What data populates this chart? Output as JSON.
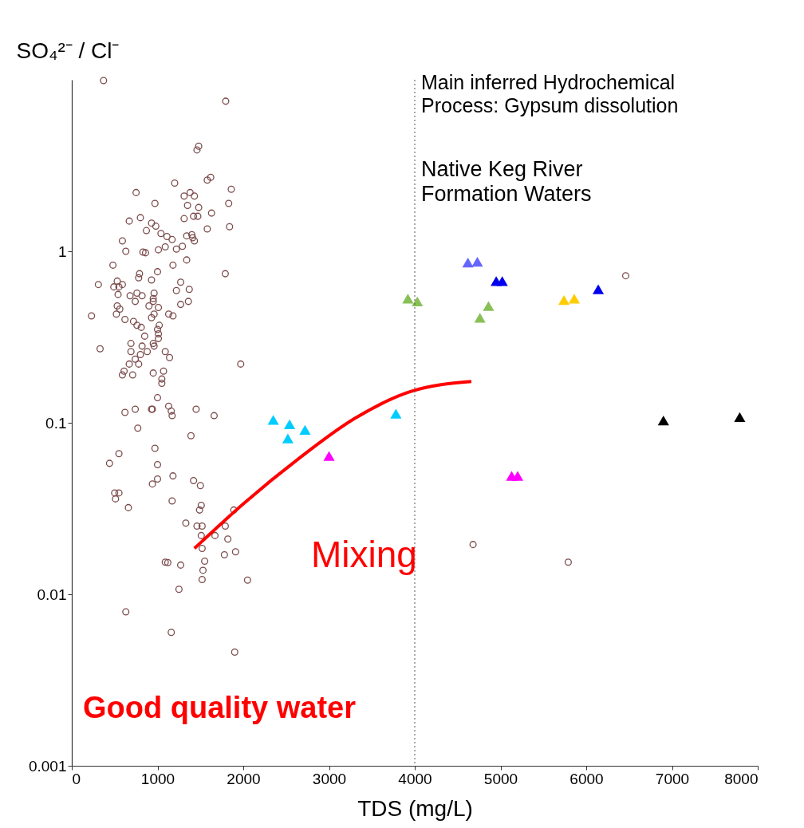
{
  "chart_data": {
    "type": "scatter",
    "xlabel": "TDS (mg/L)",
    "ylabel": "SO₄²⁻ / Cl⁻",
    "xlim": [
      0,
      8000
    ],
    "xticks": [
      0,
      1000,
      2000,
      3000,
      4000,
      5000,
      6000,
      7000,
      8000
    ],
    "ylim": [
      0.001,
      10
    ],
    "yticks": [
      1,
      0.1,
      0.01,
      0.001
    ],
    "log": "y",
    "grid": false,
    "annotations": [
      "Main inferred Hydrochemical\nProcess: Gypsum dissolution",
      "Native Keg River\nFormation Waters",
      "Mixing",
      "Good quality water"
    ],
    "ref_lines": [
      {
        "axis": "x",
        "value": 4000,
        "color": "#555555",
        "line_style": "dotted"
      }
    ],
    "series": [
      {
        "color": "#7b4a4a",
        "marker": "circle",
        "x": [
          370,
          1795,
          1460,
          1480,
          1200,
          1580,
          1620,
          1860,
          750,
          1380,
          1430,
          1310,
          1830,
          970,
          1350,
          1480,
          1630,
          1310,
          1420,
          1470,
          1840,
          670,
          800,
          930,
          980,
          870,
          590,
          1040,
          1110,
          1170,
          1340,
          1400,
          1410,
          1580,
          1290,
          1090,
          1220,
          860,
          630,
          1010,
          1430,
          1340,
          830,
          480,
          1180,
          1790,
          310,
          530,
          590,
          490,
          550,
          540,
          790,
          780,
          930,
          1000,
          1270,
          1220,
          1370,
          1360,
          1270,
          680,
          760,
          740,
          820,
          960,
          950,
          950,
          900,
          1010,
          530,
          560,
          520,
          230,
          620,
          930,
          960,
          1130,
          1180,
          720,
          760,
          810,
          1020,
          1000,
          1010,
          1010,
          850,
          690,
          330,
          820,
          950,
          960,
          690,
          800,
          880,
          1090,
          1140,
          740,
          780,
          670,
          610,
          590,
          710,
          950,
          1070,
          1050,
          1050,
          1970,
          1000,
          620,
          740,
          940,
          930,
          1130,
          1160,
          1170,
          1450,
          1660,
          770,
          1390,
          550,
          440,
          970,
          1000,
          1180,
          1420,
          1500,
          940,
          1000,
          500,
          550,
          510,
          660,
          1170,
          1510,
          1490,
          1890,
          1330,
          1460,
          1520,
          1790,
          1670,
          1510,
          1820,
          1520,
          1780,
          1910,
          1550,
          1090,
          1120,
          1270,
          1530,
          1520,
          2050,
          1250,
          630,
          1160,
          1900,
          6460,
          4680,
          5790
        ],
        "values": [
          9.9,
          7.5,
          3.9,
          4.1,
          2.5,
          2.6,
          2.7,
          2.3,
          2.2,
          2.2,
          2.1,
          2.1,
          1.9,
          1.9,
          1.85,
          1.8,
          1.67,
          1.55,
          1.6,
          1.6,
          1.39,
          1.5,
          1.57,
          1.46,
          1.4,
          1.32,
          1.15,
          1.27,
          1.22,
          1.17,
          1.23,
          1.25,
          1.2,
          1.35,
          1.07,
          1.06,
          1.03,
          0.98,
          1.0,
          1.02,
          1.15,
          0.89,
          0.99,
          0.83,
          0.83,
          0.74,
          0.64,
          0.67,
          0.64,
          0.62,
          0.62,
          0.56,
          0.74,
          0.7,
          0.68,
          0.76,
          0.66,
          0.59,
          0.6,
          0.51,
          0.49,
          0.55,
          0.57,
          0.51,
          0.55,
          0.57,
          0.53,
          0.51,
          0.48,
          0.47,
          0.48,
          0.46,
          0.43,
          0.42,
          0.4,
          0.41,
          0.43,
          0.43,
          0.42,
          0.39,
          0.37,
          0.36,
          0.37,
          0.35,
          0.33,
          0.31,
          0.32,
          0.29,
          0.27,
          0.28,
          0.29,
          0.28,
          0.26,
          0.25,
          0.26,
          0.26,
          0.24,
          0.235,
          0.22,
          0.22,
          0.2,
          0.19,
          0.19,
          0.195,
          0.2,
          0.18,
          0.17,
          0.22,
          0.14,
          0.115,
          0.12,
          0.12,
          0.12,
          0.125,
          0.117,
          0.11,
          0.12,
          0.11,
          0.093,
          0.084,
          0.066,
          0.058,
          0.071,
          0.057,
          0.049,
          0.046,
          0.043,
          0.044,
          0.047,
          0.039,
          0.039,
          0.036,
          0.032,
          0.035,
          0.033,
          0.031,
          0.031,
          0.026,
          0.025,
          0.025,
          0.025,
          0.022,
          0.022,
          0.021,
          0.0185,
          0.017,
          0.0177,
          0.0156,
          0.0154,
          0.0153,
          0.0148,
          0.0138,
          0.0122,
          0.0121,
          0.0107,
          0.0079,
          0.006,
          0.0046,
          0.72,
          0.0195,
          0.0154
        ]
      },
      {
        "color": "#00ccff",
        "marker": "triangle",
        "x": [
          2350,
          2540,
          2520,
          2720,
          3780
        ],
        "values": [
          0.104,
          0.098,
          0.081,
          0.091,
          0.113
        ]
      },
      {
        "color": "#ff00ff",
        "marker": "triangle",
        "x": [
          3000,
          5130,
          5200
        ],
        "values": [
          0.064,
          0.049,
          0.049
        ]
      },
      {
        "color": "#88c057",
        "marker": "triangle",
        "x": [
          3920,
          4030,
          4760,
          4860
        ],
        "values": [
          0.53,
          0.51,
          0.41,
          0.48
        ]
      },
      {
        "color": "#6666ff",
        "marker": "triangle",
        "x": [
          4620,
          4730
        ],
        "values": [
          0.86,
          0.87
        ]
      },
      {
        "color": "#0000ee",
        "marker": "triangle",
        "x": [
          4950,
          5020,
          6140
        ],
        "values": [
          0.67,
          0.67,
          0.6
        ]
      },
      {
        "color": "#ffcc00",
        "marker": "triangle",
        "x": [
          5740,
          5860
        ],
        "values": [
          0.52,
          0.53
        ]
      },
      {
        "color": "#000000",
        "marker": "triangle",
        "x": [
          6900,
          7790
        ],
        "values": [
          0.103,
          0.108
        ]
      },
      {
        "type": "line",
        "color": "#ff0000",
        "x": [
          1430,
          2010,
          2650,
          3300,
          3950,
          4660
        ],
        "values": [
          0.0185,
          0.034,
          0.062,
          0.106,
          0.152,
          0.174
        ]
      }
    ]
  }
}
